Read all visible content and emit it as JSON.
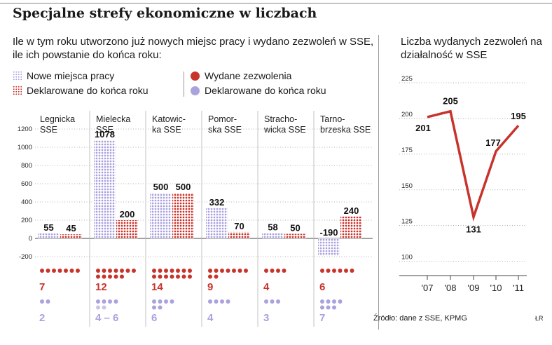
{
  "title": "Specjalne strefy ekonomiczne w liczbach",
  "subtitle": "Ile w tym roku utworzono już nowych miejsc pracy i wydano zezwoleń w SSE, ile ich powstanie do końca roku:",
  "legend": {
    "new_jobs": "Nowe miejsca pracy",
    "declared_jobs": "Deklarowane do końca roku",
    "permits_issued": "Wydane zezwolenia",
    "permits_declared": "Deklarowane do końca roku"
  },
  "colors": {
    "red": "#c8332c",
    "lilac": "#a9a2dd",
    "lilac_light": "#c9c4ea",
    "red_light": "#d65a4f"
  },
  "chart_data": [
    {
      "type": "bar",
      "categories": [
        "Legnicka SSE",
        "Mielecka SSE",
        "Katowicka SSE",
        "Pomorska SSE",
        "Starachowicka SSE",
        "Tarnobrzeska SSE"
      ],
      "category_lines": [
        [
          "Legnicka",
          "SSE"
        ],
        [
          "Mielecka",
          "SSE"
        ],
        [
          "Katowic-",
          "ka SSE"
        ],
        [
          "Pomor-",
          "ska SSE"
        ],
        [
          "Stracho-",
          "wicka SSE"
        ],
        [
          "Tarno-",
          "brzeska SSE"
        ]
      ],
      "series": [
        {
          "name": "Nowe miejsca pracy",
          "values": [
            55,
            1078,
            500,
            332,
            58,
            -190
          ]
        },
        {
          "name": "Deklarowane do końca roku",
          "values": [
            45,
            200,
            500,
            70,
            50,
            240
          ]
        }
      ],
      "value_labels": [
        [
          "55",
          "45"
        ],
        [
          "1078",
          "200"
        ],
        [
          "500",
          "500"
        ],
        [
          "332",
          "70"
        ],
        [
          "58",
          "50"
        ],
        [
          "-190",
          "240"
        ]
      ],
      "yticks": [
        -200,
        0,
        200,
        400,
        600,
        800,
        1000,
        1200
      ],
      "ytick_labels": [
        "-200",
        "0",
        "200",
        "400",
        "600",
        "800",
        "1000",
        "1200"
      ],
      "ylim": [
        -250,
        1250
      ],
      "permits_issued": [
        7,
        12,
        14,
        9,
        4,
        6
      ],
      "permits_issued_labels": [
        "7",
        "12",
        "14",
        "9",
        "4",
        "6"
      ],
      "permits_declared_min": [
        2,
        4,
        6,
        4,
        3,
        7
      ],
      "permits_declared_max": [
        2,
        6,
        6,
        4,
        3,
        7
      ],
      "permits_declared_labels": [
        "2",
        "4 – 6",
        "6",
        "4",
        "3",
        "7"
      ]
    },
    {
      "type": "line",
      "title": "Liczba wydanych zezwoleń na działalność w SSE",
      "x": [
        "'07",
        "'08",
        "'09",
        "'10",
        "'11"
      ],
      "values": [
        201,
        205,
        131,
        177,
        195
      ],
      "value_labels": [
        "201",
        "205",
        "131",
        "177",
        "195"
      ],
      "yticks": [
        100,
        125,
        150,
        175,
        200,
        225
      ],
      "ytick_labels": [
        "100",
        "125",
        "150",
        "175",
        "200",
        "225"
      ],
      "ylim": [
        90,
        225
      ]
    }
  ],
  "source": "Źródło: dane z SSE, KPMG",
  "author": "ŁR"
}
